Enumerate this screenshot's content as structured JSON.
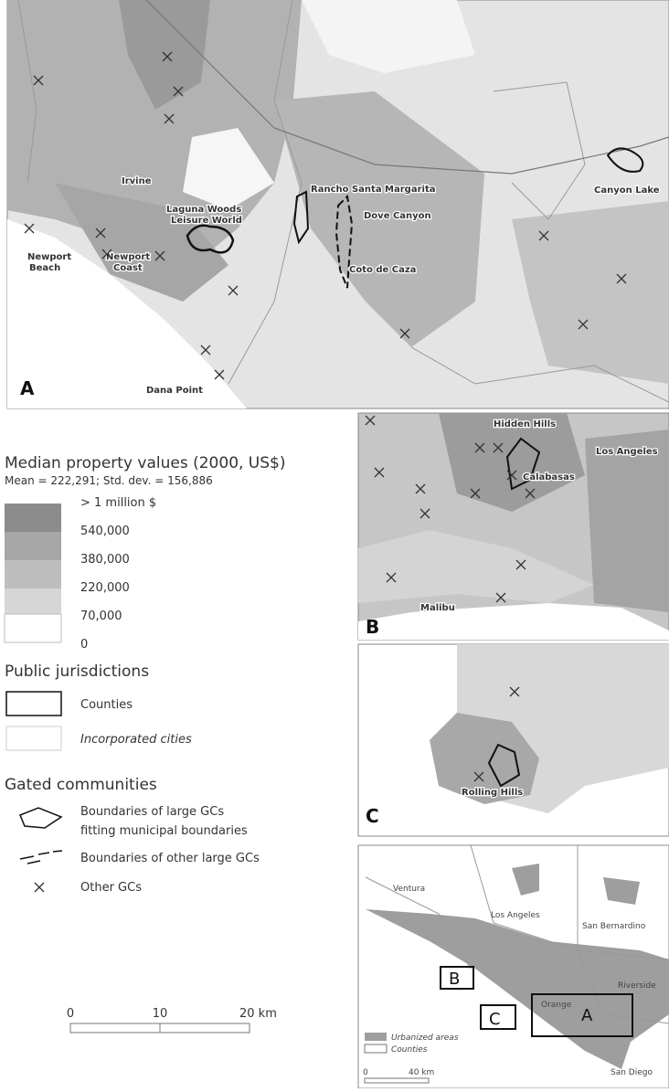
{
  "panel_a": {
    "label": "A",
    "places": [
      "Irvine",
      "Laguna Woods",
      "Leisure World",
      "Rancho Santa Margarita",
      "Dove Canyon",
      "Coto de Caza",
      "Newport",
      "Beach",
      "Newport",
      "Coast",
      "Dana Point",
      "Canyon Lake"
    ]
  },
  "legend": {
    "title": "Median property values (2000, US$)",
    "stats": "Mean = 222,291; Std. dev. = 156,886",
    "classes": [
      "> 1 million $",
      "540,000",
      "380,000",
      "220,000",
      "70,000",
      "0"
    ],
    "jurisdictions": {
      "title": "Public jurisdictions",
      "items": [
        "Counties",
        "Incorporated cities"
      ]
    },
    "gated": {
      "title": "Gated communities",
      "fitting": [
        "Boundaries of large GCs",
        "fitting municipal boundaries"
      ],
      "other": "Boundaries of other large GCs",
      "small": "Other GCs"
    },
    "scale": [
      "0",
      "10",
      "20 km"
    ]
  },
  "panel_b": {
    "label": "B",
    "places": [
      "Hidden Hills",
      "Los Angeles",
      "Calabasas",
      "Malibu"
    ]
  },
  "panel_c": {
    "label": "C",
    "places": [
      "Rolling Hills"
    ]
  },
  "inset": {
    "places": [
      "Ventura",
      "Los Angeles",
      "San Bernardino",
      "Riverside",
      "Orange",
      "San Diego"
    ],
    "boxes": [
      "A",
      "B",
      "C"
    ],
    "legend": [
      "Urbanized areas",
      "Counties"
    ],
    "scale": [
      "0",
      "40 km"
    ]
  }
}
